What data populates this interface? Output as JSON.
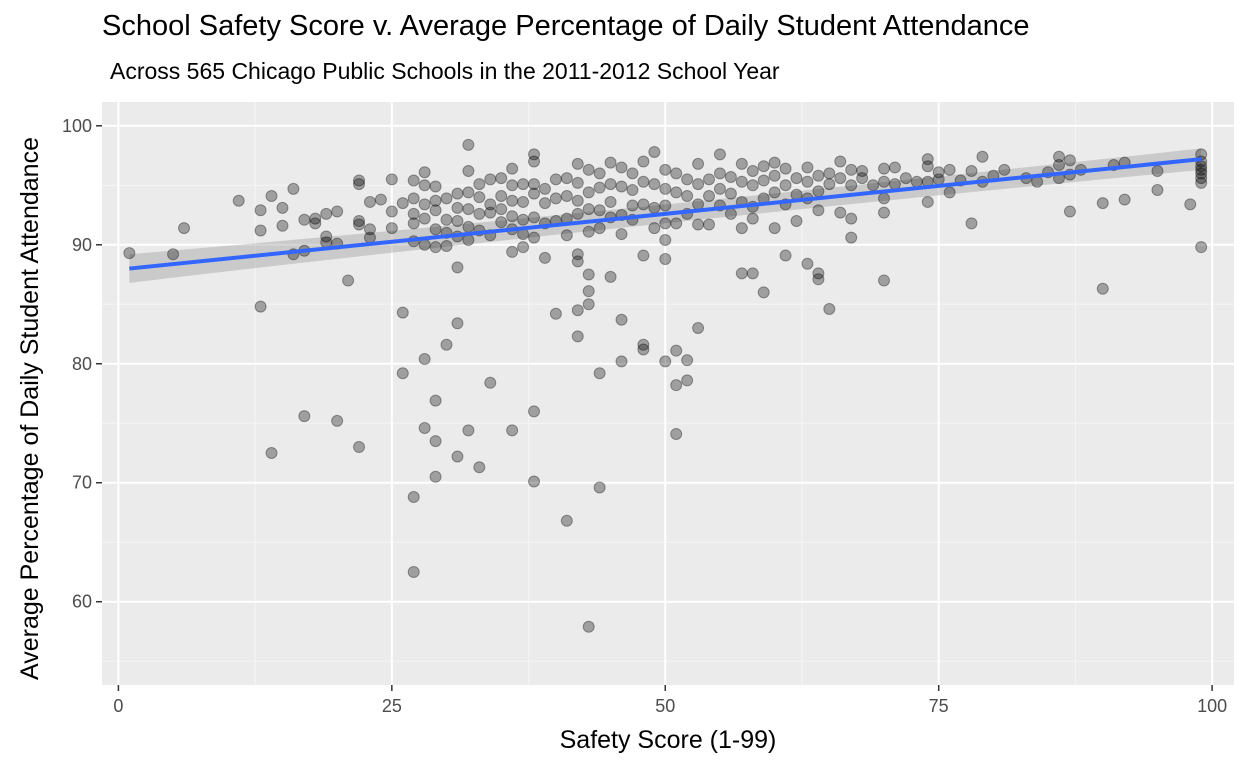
{
  "chart_data": {
    "type": "scatter",
    "title": "School Safety Score v. Average Percentage of Daily Student Attendance",
    "subtitle": "Across 565 Chicago Public Schools in the 2011-2012 School Year",
    "xlabel": "Safety Score (1-99)",
    "ylabel": "Average Percentage of Daily Student Attendance",
    "xlim": [
      -1.5,
      102
    ],
    "ylim": [
      53,
      102
    ],
    "x_ticks": [
      0,
      25,
      50,
      75,
      100
    ],
    "x_tick_labels": [
      "0",
      "25",
      "50",
      "75",
      "100"
    ],
    "y_ticks": [
      60,
      70,
      80,
      90,
      100
    ],
    "y_tick_labels": [
      "60",
      "70",
      "80",
      "90",
      "100"
    ],
    "grid": true,
    "points": [
      [
        1,
        89.3
      ],
      [
        5,
        89.2
      ],
      [
        6,
        91.4
      ],
      [
        11,
        93.7
      ],
      [
        13,
        92.9
      ],
      [
        13,
        91.2
      ],
      [
        13,
        84.8
      ],
      [
        14,
        94.1
      ],
      [
        14,
        72.5
      ],
      [
        15,
        93.1
      ],
      [
        15,
        91.6
      ],
      [
        16,
        94.7
      ],
      [
        16,
        89.2
      ],
      [
        17,
        92.1
      ],
      [
        17,
        89.5
      ],
      [
        17,
        75.6
      ],
      [
        18,
        92.2
      ],
      [
        18,
        91.8
      ],
      [
        19,
        92.6
      ],
      [
        19,
        90.7
      ],
      [
        19,
        90.2
      ],
      [
        20,
        92.8
      ],
      [
        20,
        90.1
      ],
      [
        20,
        75.2
      ],
      [
        21,
        87.0
      ],
      [
        22,
        95.4
      ],
      [
        22,
        95.1
      ],
      [
        22,
        92.0
      ],
      [
        22,
        91.7
      ],
      [
        22,
        73.0
      ],
      [
        23,
        93.6
      ],
      [
        23,
        91.3
      ],
      [
        23,
        90.6
      ],
      [
        24,
        93.8
      ],
      [
        25,
        95.5
      ],
      [
        25,
        92.8
      ],
      [
        25,
        91.4
      ],
      [
        26,
        93.5
      ],
      [
        26,
        84.3
      ],
      [
        26,
        79.2
      ],
      [
        27,
        95.4
      ],
      [
        27,
        93.9
      ],
      [
        27,
        92.6
      ],
      [
        27,
        91.8
      ],
      [
        27,
        90.3
      ],
      [
        27,
        68.8
      ],
      [
        27,
        62.5
      ],
      [
        28,
        96.1
      ],
      [
        28,
        95.0
      ],
      [
        28,
        93.4
      ],
      [
        28,
        92.2
      ],
      [
        28,
        90.0
      ],
      [
        28,
        80.4
      ],
      [
        28,
        74.6
      ],
      [
        29,
        94.9
      ],
      [
        29,
        93.7
      ],
      [
        29,
        92.9
      ],
      [
        29,
        91.3
      ],
      [
        29,
        89.8
      ],
      [
        29,
        76.9
      ],
      [
        29,
        73.5
      ],
      [
        29,
        70.5
      ],
      [
        30,
        93.9
      ],
      [
        30,
        92.1
      ],
      [
        30,
        91.0
      ],
      [
        30,
        89.9
      ],
      [
        30,
        81.6
      ],
      [
        31,
        94.3
      ],
      [
        31,
        93.1
      ],
      [
        31,
        92.0
      ],
      [
        31,
        90.7
      ],
      [
        31,
        88.1
      ],
      [
        31,
        83.4
      ],
      [
        31,
        72.2
      ],
      [
        32,
        98.4
      ],
      [
        32,
        96.2
      ],
      [
        32,
        94.4
      ],
      [
        32,
        93.0
      ],
      [
        32,
        91.5
      ],
      [
        32,
        90.4
      ],
      [
        32,
        74.4
      ],
      [
        33,
        95.1
      ],
      [
        33,
        94.0
      ],
      [
        33,
        92.6
      ],
      [
        33,
        91.2
      ],
      [
        33,
        71.3
      ],
      [
        34,
        95.5
      ],
      [
        34,
        93.4
      ],
      [
        34,
        92.7
      ],
      [
        34,
        90.8
      ],
      [
        34,
        78.4
      ],
      [
        35,
        95.6
      ],
      [
        35,
        94.1
      ],
      [
        35,
        93.0
      ],
      [
        35,
        91.9
      ],
      [
        36,
        96.4
      ],
      [
        36,
        95.0
      ],
      [
        36,
        93.7
      ],
      [
        36,
        92.4
      ],
      [
        36,
        91.3
      ],
      [
        36,
        89.4
      ],
      [
        36,
        74.4
      ],
      [
        37,
        95.1
      ],
      [
        37,
        93.6
      ],
      [
        37,
        92.1
      ],
      [
        37,
        90.9
      ],
      [
        37,
        89.8
      ],
      [
        38,
        97.6
      ],
      [
        38,
        97.0
      ],
      [
        38,
        95.1
      ],
      [
        38,
        94.3
      ],
      [
        38,
        92.3
      ],
      [
        38,
        90.6
      ],
      [
        38,
        76.0
      ],
      [
        38,
        70.1
      ],
      [
        39,
        94.7
      ],
      [
        39,
        93.5
      ],
      [
        39,
        91.8
      ],
      [
        39,
        88.9
      ],
      [
        40,
        95.5
      ],
      [
        40,
        93.9
      ],
      [
        40,
        92.0
      ],
      [
        40,
        84.2
      ],
      [
        41,
        95.6
      ],
      [
        41,
        94.1
      ],
      [
        41,
        92.2
      ],
      [
        41,
        90.8
      ],
      [
        41,
        66.8
      ],
      [
        42,
        96.8
      ],
      [
        42,
        95.2
      ],
      [
        42,
        93.7
      ],
      [
        42,
        92.6
      ],
      [
        42,
        89.2
      ],
      [
        42,
        88.6
      ],
      [
        42,
        84.5
      ],
      [
        42,
        82.3
      ],
      [
        43,
        96.3
      ],
      [
        43,
        94.4
      ],
      [
        43,
        93.0
      ],
      [
        43,
        91.1
      ],
      [
        43,
        87.5
      ],
      [
        43,
        86.1
      ],
      [
        43,
        85.0
      ],
      [
        43,
        57.9
      ],
      [
        44,
        96.0
      ],
      [
        44,
        94.8
      ],
      [
        44,
        92.9
      ],
      [
        44,
        91.4
      ],
      [
        44,
        79.2
      ],
      [
        44,
        69.6
      ],
      [
        45,
        96.9
      ],
      [
        45,
        95.1
      ],
      [
        45,
        93.6
      ],
      [
        45,
        92.3
      ],
      [
        45,
        87.3
      ],
      [
        46,
        96.5
      ],
      [
        46,
        94.9
      ],
      [
        46,
        92.5
      ],
      [
        46,
        90.9
      ],
      [
        46,
        83.7
      ],
      [
        46,
        80.2
      ],
      [
        47,
        96.0
      ],
      [
        47,
        94.6
      ],
      [
        47,
        93.3
      ],
      [
        47,
        92.1
      ],
      [
        48,
        97.0
      ],
      [
        48,
        95.3
      ],
      [
        48,
        93.4
      ],
      [
        48,
        89.1
      ],
      [
        48,
        81.6
      ],
      [
        48,
        81.2
      ],
      [
        49,
        97.8
      ],
      [
        49,
        95.1
      ],
      [
        49,
        93.1
      ],
      [
        49,
        91.4
      ],
      [
        50,
        96.3
      ],
      [
        50,
        94.7
      ],
      [
        50,
        93.3
      ],
      [
        50,
        91.8
      ],
      [
        50,
        90.4
      ],
      [
        50,
        88.8
      ],
      [
        50,
        80.2
      ],
      [
        51,
        96.0
      ],
      [
        51,
        94.4
      ],
      [
        51,
        91.8
      ],
      [
        51,
        81.1
      ],
      [
        51,
        78.2
      ],
      [
        51,
        74.1
      ],
      [
        52,
        95.5
      ],
      [
        52,
        94.1
      ],
      [
        52,
        92.6
      ],
      [
        52,
        80.3
      ],
      [
        52,
        78.6
      ],
      [
        53,
        96.8
      ],
      [
        53,
        95.1
      ],
      [
        53,
        93.4
      ],
      [
        53,
        91.7
      ],
      [
        53,
        83.0
      ],
      [
        54,
        95.5
      ],
      [
        54,
        94.1
      ],
      [
        54,
        91.7
      ],
      [
        55,
        97.6
      ],
      [
        55,
        96.0
      ],
      [
        55,
        94.7
      ],
      [
        55,
        93.3
      ],
      [
        56,
        95.7
      ],
      [
        56,
        94.3
      ],
      [
        56,
        92.6
      ],
      [
        57,
        96.8
      ],
      [
        57,
        95.3
      ],
      [
        57,
        93.6
      ],
      [
        57,
        91.4
      ],
      [
        57,
        87.6
      ],
      [
        58,
        96.2
      ],
      [
        58,
        95.0
      ],
      [
        58,
        93.2
      ],
      [
        58,
        92.2
      ],
      [
        58,
        87.6
      ],
      [
        59,
        96.6
      ],
      [
        59,
        95.4
      ],
      [
        59,
        93.9
      ],
      [
        59,
        86.0
      ],
      [
        60,
        96.9
      ],
      [
        60,
        95.8
      ],
      [
        60,
        94.4
      ],
      [
        60,
        91.4
      ],
      [
        61,
        96.4
      ],
      [
        61,
        95.0
      ],
      [
        61,
        93.4
      ],
      [
        61,
        89.1
      ],
      [
        62,
        95.6
      ],
      [
        62,
        94.2
      ],
      [
        62,
        92.0
      ],
      [
        63,
        96.5
      ],
      [
        63,
        95.3
      ],
      [
        63,
        93.9
      ],
      [
        63,
        88.4
      ],
      [
        64,
        95.8
      ],
      [
        64,
        94.5
      ],
      [
        64,
        92.9
      ],
      [
        64,
        87.6
      ],
      [
        64,
        87.1
      ],
      [
        65,
        96.0
      ],
      [
        65,
        95.1
      ],
      [
        65,
        84.6
      ],
      [
        66,
        97.0
      ],
      [
        66,
        95.6
      ],
      [
        66,
        92.7
      ],
      [
        67,
        96.3
      ],
      [
        67,
        95.0
      ],
      [
        67,
        92.2
      ],
      [
        67,
        90.6
      ],
      [
        68,
        96.2
      ],
      [
        68,
        95.6
      ],
      [
        69,
        95.0
      ],
      [
        70,
        96.4
      ],
      [
        70,
        95.3
      ],
      [
        70,
        93.9
      ],
      [
        70,
        92.7
      ],
      [
        70,
        87.0
      ],
      [
        71,
        96.5
      ],
      [
        71,
        95.1
      ],
      [
        72,
        95.6
      ],
      [
        73,
        95.3
      ],
      [
        74,
        97.2
      ],
      [
        74,
        96.6
      ],
      [
        74,
        95.3
      ],
      [
        74,
        93.6
      ],
      [
        75,
        96.1
      ],
      [
        75,
        95.5
      ],
      [
        76,
        96.3
      ],
      [
        76,
        94.4
      ],
      [
        77,
        95.4
      ],
      [
        78,
        96.2
      ],
      [
        78,
        91.8
      ],
      [
        79,
        97.4
      ],
      [
        79,
        95.3
      ],
      [
        80,
        95.8
      ],
      [
        81,
        96.3
      ],
      [
        83,
        95.6
      ],
      [
        84,
        95.3
      ],
      [
        85,
        96.1
      ],
      [
        86,
        97.4
      ],
      [
        86,
        96.7
      ],
      [
        86,
        95.6
      ],
      [
        87,
        97.1
      ],
      [
        87,
        95.9
      ],
      [
        87,
        92.8
      ],
      [
        88,
        96.3
      ],
      [
        90,
        93.5
      ],
      [
        90,
        86.3
      ],
      [
        91,
        96.7
      ],
      [
        92,
        96.9
      ],
      [
        92,
        93.8
      ],
      [
        95,
        96.2
      ],
      [
        95,
        94.6
      ],
      [
        98,
        93.4
      ],
      [
        99,
        97.6
      ],
      [
        99,
        97.0
      ],
      [
        99,
        96.6
      ],
      [
        99,
        96.3
      ],
      [
        99,
        96.0
      ],
      [
        99,
        95.6
      ],
      [
        99,
        95.2
      ],
      [
        99,
        89.8
      ]
    ],
    "trend_line": {
      "method": "linear",
      "x": [
        1,
        99
      ],
      "y": [
        88.0,
        97.2
      ],
      "ci_halfwidth": [
        1.2,
        0.9
      ]
    }
  }
}
